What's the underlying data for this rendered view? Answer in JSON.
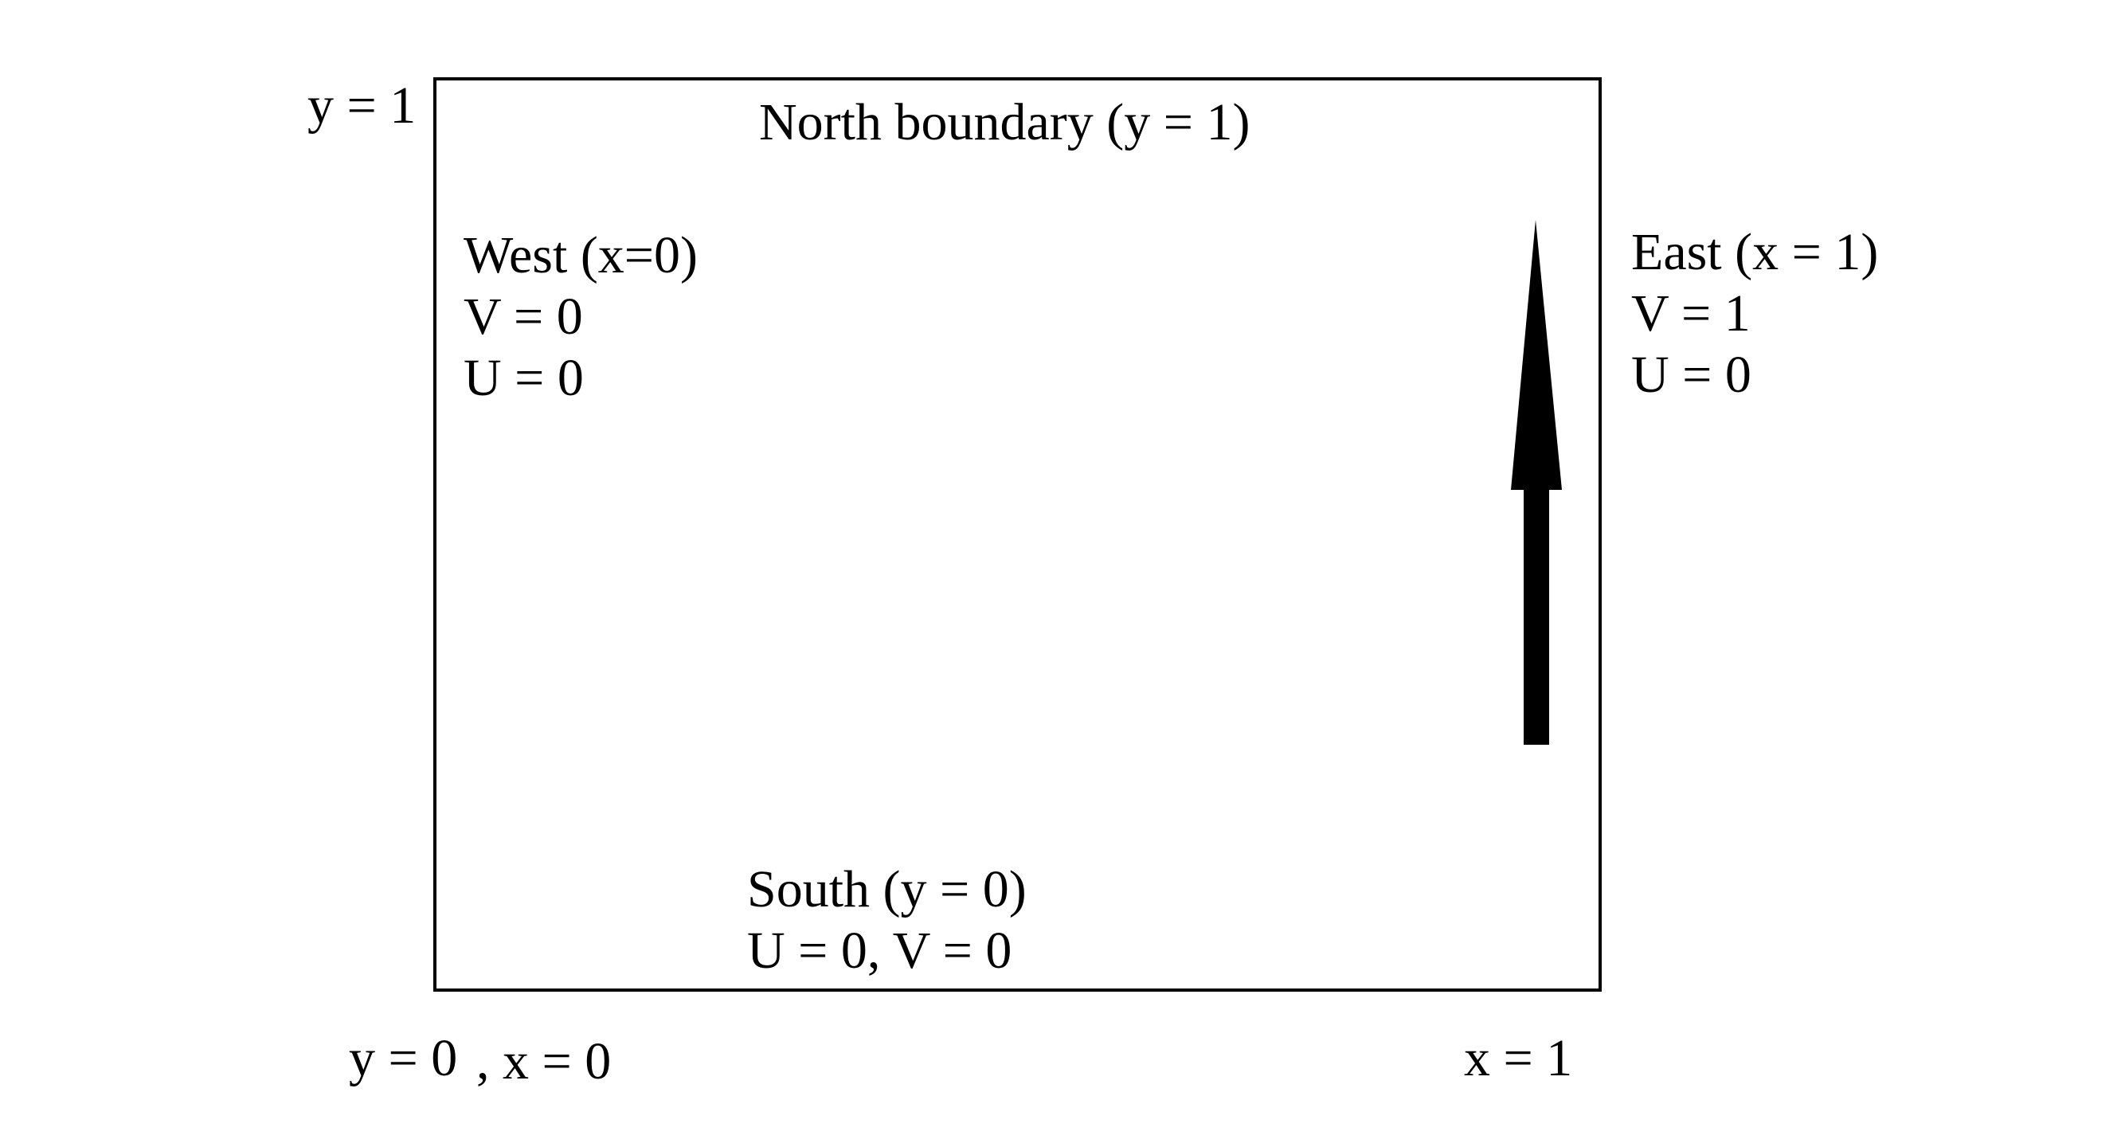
{
  "corner_labels": {
    "top_left": "y = 1",
    "bottom_left_y": "y = 0",
    "bottom_left_x": ", x = 0",
    "bottom_right": "x = 1"
  },
  "north": {
    "label": "North boundary (y = 1)"
  },
  "west": {
    "lines": [
      "West (x=0)",
      "V = 0",
      "U = 0"
    ]
  },
  "east": {
    "lines": [
      "East (x = 1)",
      "V = 1",
      "U = 0"
    ]
  },
  "south": {
    "lines": [
      "South (y = 0)",
      "U = 0, V = 0"
    ]
  },
  "colors": {
    "stroke": "#000000",
    "background": "#ffffff"
  },
  "icons": {
    "arrow": "arrow-up-icon"
  }
}
